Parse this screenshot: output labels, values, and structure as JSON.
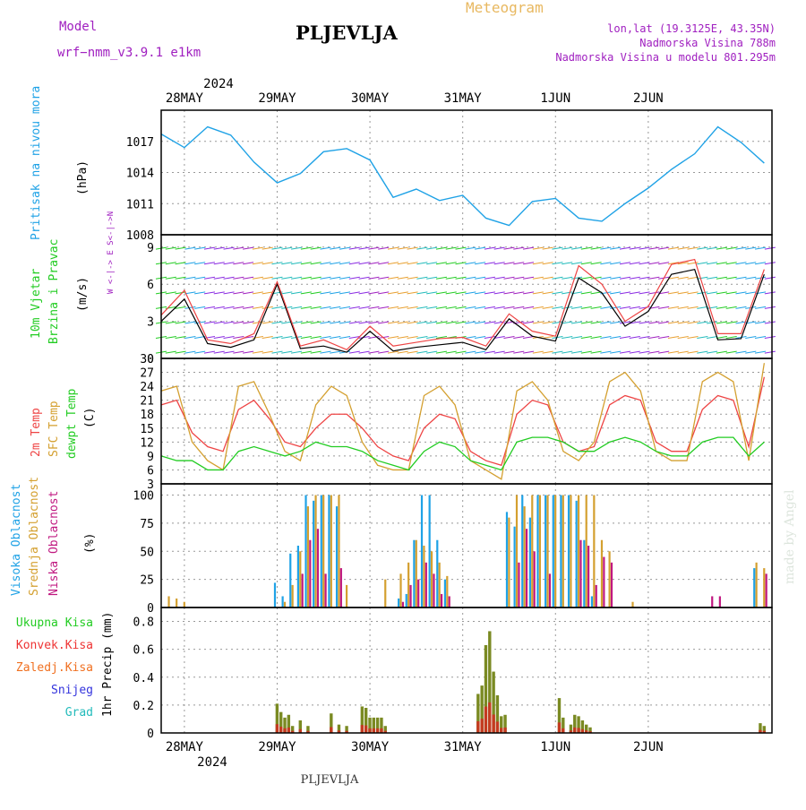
{
  "header": {
    "model_label": "Model",
    "model_name": "wrf−nmm_v3.9.1  e1km",
    "title": "PLJEVLJA",
    "meteogram_label": "Meteogram",
    "lonlat": "lon,lat (19.3125E, 43.35N)",
    "elevation": "Nadmorska Visina 788m",
    "model_elevation": "Nadmorska Visina u modelu 801.295m",
    "year_top": "2024",
    "year_bottom": "2024",
    "footer_station": "PLJEVLJA",
    "credit": "made by Angel"
  },
  "colors": {
    "pressure": "#1fa2e6",
    "wind_label": "#22cc22",
    "wind_dir_label": "#a020c0",
    "temp2m": "#ee4444",
    "sfc": "#d4a030",
    "dewpt": "#22cc22",
    "cloud_high": "#1fa2e6",
    "cloud_mid": "#d4a030",
    "cloud_low": "#c01880",
    "precip_total": "#22cc22",
    "precip_conv": "#ee3333",
    "precip_frz": "#f07020",
    "snow": "#3333dd",
    "grad": "#22bbbb"
  },
  "chart_data": [
    {
      "type": "line",
      "title": "Pritisak na nivou mora",
      "ylabel": "Pritisak na nivou mora",
      "unit": "(hPa)",
      "x_day_labels": [
        "28MAY",
        "29MAY",
        "30MAY",
        "31MAY",
        "1JUN",
        "2JUN"
      ],
      "ylim": [
        1008,
        1020
      ],
      "yticks": [
        1008,
        1011,
        1014,
        1017
      ],
      "grid": true,
      "x": [
        0,
        6,
        12,
        18,
        24,
        30,
        36,
        42,
        48,
        54,
        60,
        66,
        72,
        78,
        84,
        90,
        96,
        102,
        108,
        114,
        120,
        126,
        132,
        138,
        144,
        150,
        156
      ],
      "values": [
        1017.7,
        1016.4,
        1018.4,
        1017.6,
        1015.0,
        1013.0,
        1013.9,
        1016.0,
        1016.3,
        1015.2,
        1011.6,
        1012.4,
        1011.3,
        1011.8,
        1009.6,
        1008.9,
        1011.2,
        1011.5,
        1009.6,
        1009.3,
        1011.0,
        1012.5,
        1014.3,
        1015.8,
        1018.4,
        1016.9,
        1014.9
      ]
    },
    {
      "type": "line",
      "title": "10m Vjetar Brzina i Pravac",
      "ylabel": "10m Vjetar Brzina i Pravac",
      "unit": "(m/s)",
      "direction_legend": "W <-|-> E  S<-|->N",
      "ylim": [
        0,
        10
      ],
      "yticks": [
        0,
        3,
        6,
        9
      ],
      "grid": true,
      "series": [
        {
          "name": "wind speed",
          "x": [
            0,
            6,
            12,
            18,
            24,
            30,
            36,
            42,
            48,
            54,
            60,
            66,
            72,
            78,
            84,
            90,
            96,
            102,
            108,
            114,
            120,
            126,
            132,
            138,
            144,
            150,
            156
          ],
          "values": [
            3.0,
            4.8,
            1.2,
            0.9,
            1.5,
            6.0,
            0.8,
            1.0,
            0.5,
            2.2,
            0.6,
            0.9,
            1.1,
            1.3,
            0.7,
            3.2,
            1.8,
            1.4,
            6.5,
            5.3,
            2.6,
            3.8,
            6.8,
            7.2,
            1.5,
            1.6,
            6.8
          ]
        },
        {
          "name": "gust",
          "x": [
            0,
            6,
            12,
            18,
            24,
            30,
            36,
            42,
            48,
            54,
            60,
            66,
            72,
            78,
            84,
            90,
            96,
            102,
            108,
            114,
            120,
            126,
            132,
            138,
            144,
            150,
            156
          ],
          "values": [
            3.5,
            5.5,
            1.5,
            1.2,
            2.0,
            6.2,
            1.0,
            1.5,
            0.7,
            2.6,
            1.0,
            1.3,
            1.6,
            1.7,
            1.0,
            3.6,
            2.2,
            1.8,
            7.5,
            6.0,
            3.0,
            4.2,
            7.6,
            8.0,
            2.0,
            2.0,
            7.2
          ]
        }
      ]
    },
    {
      "type": "line",
      "title": "2m Temp / SFC Temp / dewpt Temp",
      "unit": "(C)",
      "ylim": [
        3,
        30
      ],
      "yticks": [
        3,
        6,
        9,
        12,
        15,
        18,
        21,
        24,
        27,
        30
      ],
      "grid": true,
      "series": [
        {
          "name": "2m Temp",
          "x": [
            0,
            4,
            8,
            12,
            16,
            20,
            24,
            28,
            32,
            36,
            40,
            44,
            48,
            52,
            56,
            60,
            64,
            68,
            72,
            76,
            80,
            84,
            88,
            92,
            96,
            100,
            104,
            108,
            112,
            116,
            120,
            124,
            128,
            132,
            136,
            140,
            144,
            148,
            152,
            156
          ],
          "values": [
            20,
            21,
            14,
            11,
            10,
            19,
            21,
            17,
            12,
            11,
            15,
            18,
            18,
            15,
            11,
            9,
            8,
            15,
            18,
            17,
            10,
            8,
            7,
            18,
            21,
            20,
            12,
            10,
            11,
            20,
            22,
            21,
            12,
            10,
            10,
            19,
            22,
            21,
            11,
            26
          ]
        },
        {
          "name": "SFC Temp",
          "x": [
            0,
            4,
            8,
            12,
            16,
            20,
            24,
            28,
            32,
            36,
            40,
            44,
            48,
            52,
            56,
            60,
            64,
            68,
            72,
            76,
            80,
            84,
            88,
            92,
            96,
            100,
            104,
            108,
            112,
            116,
            120,
            124,
            128,
            132,
            136,
            140,
            144,
            148,
            152,
            156
          ],
          "values": [
            23,
            24,
            12,
            8,
            6,
            24,
            25,
            18,
            10,
            8,
            20,
            24,
            22,
            12,
            7,
            6,
            6,
            22,
            24,
            20,
            8,
            6,
            4,
            23,
            25,
            21,
            10,
            8,
            12,
            25,
            27,
            23,
            10,
            8,
            8,
            25,
            27,
            25,
            8,
            29
          ]
        },
        {
          "name": "dewpt Temp",
          "x": [
            0,
            4,
            8,
            12,
            16,
            20,
            24,
            28,
            32,
            36,
            40,
            44,
            48,
            52,
            56,
            60,
            64,
            68,
            72,
            76,
            80,
            84,
            88,
            92,
            96,
            100,
            104,
            108,
            112,
            116,
            120,
            124,
            128,
            132,
            136,
            140,
            144,
            148,
            152,
            156
          ],
          "values": [
            9,
            8,
            8,
            6,
            6,
            10,
            11,
            10,
            9,
            10,
            12,
            11,
            11,
            10,
            8,
            7,
            6,
            10,
            12,
            11,
            8,
            7,
            6,
            12,
            13,
            13,
            12,
            10,
            10,
            12,
            13,
            12,
            10,
            9,
            9,
            12,
            13,
            13,
            9,
            12
          ]
        }
      ]
    },
    {
      "type": "bar",
      "title": "Visoka / Srednja / Niska Oblacnost",
      "unit": "(%)",
      "ylim": [
        0,
        100
      ],
      "yticks": [
        0,
        25,
        50,
        75,
        100
      ],
      "grid": true,
      "x": [
        2,
        4,
        6,
        30,
        32,
        34,
        36,
        38,
        40,
        42,
        44,
        46,
        48,
        50,
        58,
        62,
        64,
        66,
        68,
        70,
        72,
        74,
        76,
        86,
        90,
        92,
        94,
        96,
        98,
        100,
        102,
        104,
        106,
        108,
        110,
        112,
        114,
        116,
        118,
        122,
        126,
        138,
        142,
        144,
        150,
        152,
        154,
        156
      ],
      "series": [
        {
          "name": "Visoka Oblacnost",
          "values": [
            0,
            0,
            0,
            22,
            10,
            48,
            55,
            100,
            95,
            100,
            100,
            90,
            0,
            0,
            0,
            8,
            12,
            60,
            100,
            100,
            60,
            25,
            0,
            0,
            85,
            72,
            100,
            80,
            100,
            100,
            100,
            100,
            100,
            95,
            60,
            10,
            0,
            0,
            0,
            0,
            0,
            0,
            0,
            0,
            0,
            0,
            35,
            0
          ]
        },
        {
          "name": "Srednja Oblacnost",
          "values": [
            10,
            8,
            5,
            0,
            5,
            20,
            50,
            90,
            100,
            100,
            100,
            100,
            20,
            0,
            25,
            30,
            40,
            60,
            55,
            50,
            40,
            28,
            0,
            0,
            80,
            100,
            90,
            100,
            100,
            100,
            100,
            100,
            100,
            100,
            100,
            100,
            60,
            50,
            0,
            5,
            0,
            0,
            0,
            0,
            0,
            0,
            40,
            35
          ]
        },
        {
          "name": "Niska Oblacnost",
          "values": [
            0,
            0,
            0,
            0,
            0,
            0,
            30,
            60,
            70,
            30,
            0,
            35,
            0,
            0,
            0,
            5,
            20,
            25,
            40,
            30,
            12,
            10,
            0,
            0,
            0,
            40,
            70,
            50,
            0,
            30,
            0,
            0,
            0,
            60,
            55,
            20,
            45,
            40,
            0,
            0,
            0,
            0,
            10,
            10,
            0,
            0,
            0,
            30
          ]
        }
      ]
    },
    {
      "type": "bar",
      "title": "1hr Precip",
      "unit": "1hr Precip (mm)",
      "ylim": [
        0,
        0.9
      ],
      "yticks": [
        0,
        0.2,
        0.4,
        0.6,
        0.8
      ],
      "grid": true,
      "legend": [
        "Ukupna Kisa",
        "Konvek.Kisa",
        "Zaledj.Kisa",
        "Snijeg",
        "Grad"
      ],
      "x": [
        30,
        31,
        32,
        33,
        34,
        36,
        38,
        44,
        46,
        48,
        52,
        53,
        54,
        55,
        56,
        57,
        58,
        82,
        83,
        84,
        85,
        86,
        87,
        88,
        89,
        103,
        104,
        106,
        107,
        108,
        109,
        110,
        111,
        155,
        156
      ],
      "values": [
        0.21,
        0.15,
        0.11,
        0.13,
        0.05,
        0.09,
        0.05,
        0.14,
        0.06,
        0.05,
        0.19,
        0.18,
        0.11,
        0.11,
        0.11,
        0.11,
        0.05,
        0.28,
        0.34,
        0.63,
        0.73,
        0.44,
        0.27,
        0.12,
        0.13,
        0.25,
        0.11,
        0.06,
        0.13,
        0.12,
        0.09,
        0.06,
        0.04,
        0.07,
        0.05
      ]
    }
  ]
}
